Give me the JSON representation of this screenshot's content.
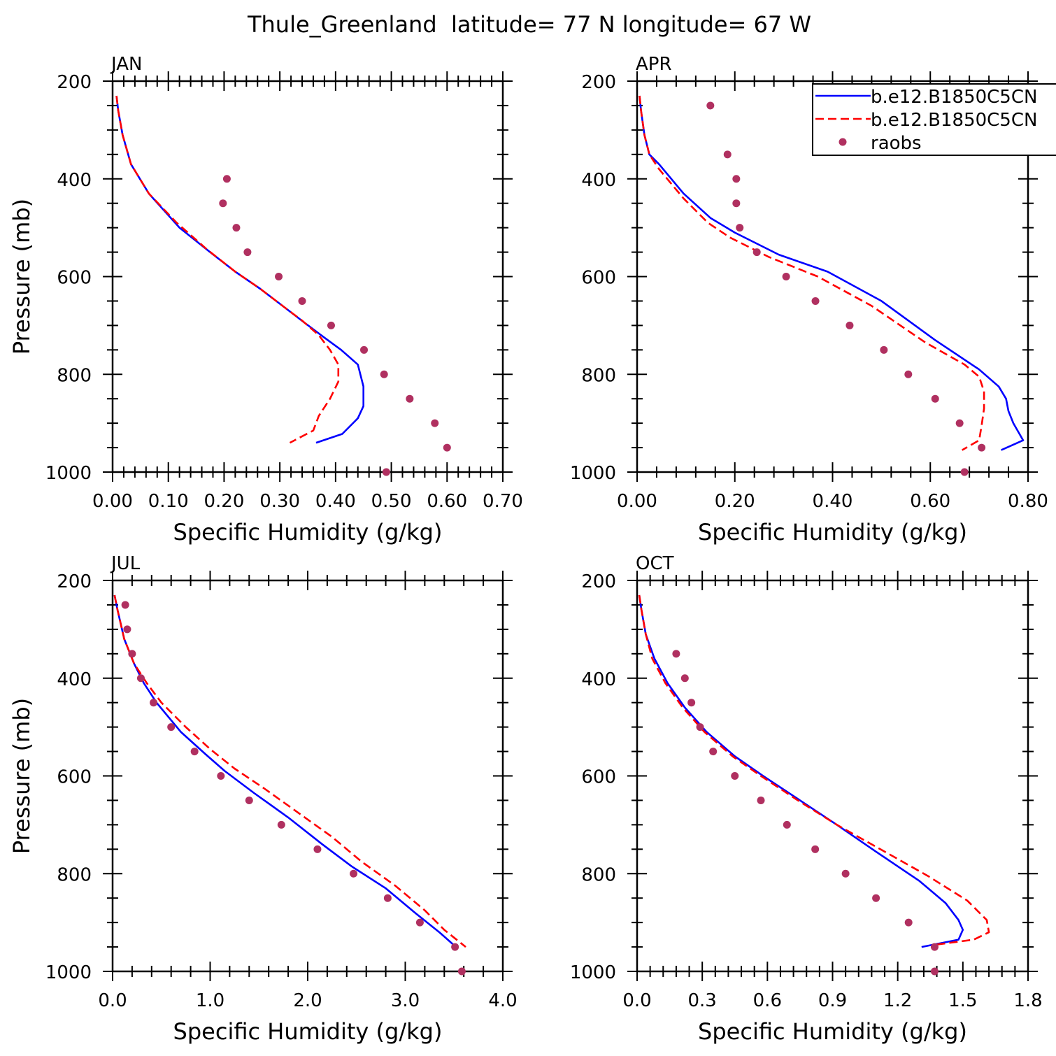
{
  "figure": {
    "title": "Thule_Greenland  latitude= 77 N longitude= 67 W"
  },
  "legend": {
    "entries": [
      {
        "label": "b.e12.B1850C5CN",
        "style": "solid",
        "color": "#0000ff"
      },
      {
        "label": "b.e12.B1850C5CN",
        "style": "dashed",
        "color": "#ff0000"
      },
      {
        "label": "raobs",
        "style": "marker",
        "color": "#b03060"
      }
    ]
  },
  "colors": {
    "model1": "#0000ff",
    "model2": "#ff0000",
    "obs": "#b03060"
  },
  "chart_data": [
    {
      "type": "line",
      "panel_label": "JAN",
      "xlabel": "Specific Humidity (g/kg)",
      "ylabel": "Pressure (mb)",
      "xlim": [
        0,
        0.7
      ],
      "ylim": [
        200,
        1000
      ],
      "y_inverted": true,
      "xticks": [
        0,
        0.1,
        0.2,
        0.3,
        0.4,
        0.5,
        0.6,
        0.7
      ],
      "xtick_labels": [
        "0.00",
        "0.10",
        "0.20",
        "0.30",
        "0.40",
        "0.50",
        "0.60",
        "0.70"
      ],
      "yticks": [
        200,
        400,
        600,
        800,
        1000
      ],
      "ytick_labels": [
        "200",
        "400",
        "600",
        "800",
        "1000"
      ],
      "series": [
        {
          "name": "b.e12.B1850C5CN",
          "style": "solid",
          "x": [
            0.007,
            0.01,
            0.018,
            0.033,
            0.065,
            0.12,
            0.175,
            0.22,
            0.265,
            0.305,
            0.345,
            0.38,
            0.41,
            0.44,
            0.45,
            0.45,
            0.44,
            0.412,
            0.365
          ],
          "y": [
            230,
            260,
            310,
            370,
            430,
            500,
            550,
            590,
            625,
            660,
            695,
            725,
            750,
            780,
            825,
            865,
            890,
            922,
            940
          ]
        },
        {
          "name": "b.e12.B1850C5CN",
          "style": "dashed",
          "x": [
            0.007,
            0.01,
            0.018,
            0.033,
            0.065,
            0.115,
            0.17,
            0.22,
            0.265,
            0.305,
            0.34,
            0.37,
            0.39,
            0.405,
            0.405,
            0.39,
            0.37,
            0.36,
            0.318
          ],
          "y": [
            230,
            260,
            310,
            370,
            430,
            490,
            545,
            590,
            625,
            660,
            690,
            720,
            750,
            780,
            815,
            850,
            885,
            915,
            940
          ]
        }
      ],
      "observations": {
        "name": "raobs",
        "x": [
          0.205,
          0.198,
          0.222,
          0.242,
          0.298,
          0.34,
          0.392,
          0.451,
          0.487,
          0.533,
          0.578,
          0.6,
          0.491
        ],
        "y": [
          400,
          450,
          500,
          550,
          600,
          650,
          700,
          750,
          800,
          850,
          900,
          950,
          1000
        ]
      }
    },
    {
      "type": "line",
      "panel_label": "APR",
      "xlabel": "Specific Humidity (g/kg)",
      "ylabel": "",
      "xlim": [
        0,
        0.8
      ],
      "ylim": [
        200,
        1000
      ],
      "y_inverted": true,
      "xticks": [
        0,
        0.2,
        0.4,
        0.6,
        0.8
      ],
      "xtick_labels": [
        "0.00",
        "0.20",
        "0.40",
        "0.60",
        "0.80"
      ],
      "yticks": [
        200,
        400,
        600,
        800,
        1000
      ],
      "ytick_labels": [
        "200",
        "400",
        "600",
        "800",
        "1000"
      ],
      "series": [
        {
          "name": "b.e12.B1850C5CN",
          "style": "solid",
          "x": [
            0.005,
            0.008,
            0.015,
            0.025,
            0.045,
            0.095,
            0.15,
            0.2,
            0.29,
            0.39,
            0.5,
            0.61,
            0.7,
            0.74,
            0.755,
            0.76,
            0.77,
            0.79,
            0.745
          ],
          "y": [
            230,
            260,
            310,
            350,
            370,
            430,
            480,
            510,
            555,
            590,
            650,
            730,
            790,
            825,
            850,
            875,
            900,
            935,
            955
          ]
        },
        {
          "name": "b.e12.B1850C5CN",
          "style": "dashed",
          "x": [
            0.005,
            0.008,
            0.015,
            0.025,
            0.045,
            0.095,
            0.145,
            0.19,
            0.27,
            0.37,
            0.48,
            0.59,
            0.67,
            0.7,
            0.71,
            0.71,
            0.705,
            0.7,
            0.665
          ],
          "y": [
            230,
            260,
            310,
            350,
            380,
            440,
            490,
            520,
            560,
            600,
            660,
            735,
            780,
            805,
            835,
            870,
            905,
            935,
            955
          ]
        }
      ],
      "observations": {
        "name": "raobs",
        "x": [
          0.15,
          0.185,
          0.203,
          0.203,
          0.21,
          0.245,
          0.305,
          0.365,
          0.435,
          0.505,
          0.555,
          0.61,
          0.66,
          0.705,
          0.67
        ],
        "y": [
          250,
          350,
          400,
          450,
          500,
          550,
          600,
          650,
          700,
          750,
          800,
          850,
          900,
          950,
          1000
        ]
      }
    },
    {
      "type": "line",
      "panel_label": "JUL",
      "xlabel": "Specific Humidity (g/kg)",
      "ylabel": "Pressure (mb)",
      "xlim": [
        0,
        4.0
      ],
      "ylim": [
        200,
        1000
      ],
      "y_inverted": true,
      "xticks": [
        0,
        1,
        2,
        3,
        4
      ],
      "xtick_labels": [
        "0.0",
        "1.0",
        "2.0",
        "3.0",
        "4.0"
      ],
      "yticks": [
        200,
        400,
        600,
        800,
        1000
      ],
      "ytick_labels": [
        "200",
        "400",
        "600",
        "800",
        "1000"
      ],
      "series": [
        {
          "name": "b.e12.B1850C5CN",
          "style": "solid",
          "x": [
            0.02,
            0.05,
            0.12,
            0.22,
            0.32,
            0.45,
            0.7,
            0.95,
            1.15,
            1.45,
            1.8,
            2.15,
            2.45,
            2.8,
            3.1,
            3.35,
            3.52
          ],
          "y": [
            230,
            260,
            320,
            370,
            410,
            450,
            510,
            555,
            590,
            635,
            685,
            740,
            785,
            830,
            880,
            920,
            950
          ]
        },
        {
          "name": "b.e12.B1850C5CN",
          "style": "dashed",
          "x": [
            0.02,
            0.05,
            0.12,
            0.22,
            0.35,
            0.5,
            0.75,
            1.0,
            1.25,
            1.55,
            1.9,
            2.25,
            2.55,
            2.9,
            3.2,
            3.4,
            3.62
          ],
          "y": [
            230,
            260,
            320,
            370,
            410,
            450,
            500,
            545,
            585,
            625,
            675,
            725,
            775,
            825,
            875,
            915,
            950
          ]
        }
      ],
      "observations": {
        "name": "raobs",
        "x": [
          0.13,
          0.15,
          0.2,
          0.29,
          0.42,
          0.6,
          0.84,
          1.11,
          1.4,
          1.73,
          2.1,
          2.47,
          2.82,
          3.15,
          3.51,
          3.58
        ],
        "y": [
          250,
          300,
          350,
          400,
          450,
          500,
          550,
          600,
          650,
          700,
          750,
          800,
          850,
          900,
          950,
          1000
        ]
      }
    },
    {
      "type": "line",
      "panel_label": "OCT",
      "xlabel": "Specific Humidity (g/kg)",
      "ylabel": "",
      "xlim": [
        0,
        1.8
      ],
      "ylim": [
        200,
        1000
      ],
      "y_inverted": true,
      "xticks": [
        0,
        0.3,
        0.6,
        0.9,
        1.2,
        1.5,
        1.8
      ],
      "xtick_labels": [
        "0.0",
        "0.3",
        "0.6",
        "0.9",
        "1.2",
        "1.5",
        "1.8"
      ],
      "yticks": [
        200,
        400,
        600,
        800,
        1000
      ],
      "ytick_labels": [
        "200",
        "400",
        "600",
        "800",
        "1000"
      ],
      "series": [
        {
          "name": "b.e12.B1850C5CN",
          "style": "solid",
          "x": [
            0.01,
            0.02,
            0.04,
            0.08,
            0.14,
            0.22,
            0.32,
            0.45,
            0.58,
            0.75,
            0.92,
            1.1,
            1.3,
            1.42,
            1.48,
            1.5,
            1.48,
            1.31
          ],
          "y": [
            230,
            260,
            310,
            360,
            410,
            460,
            510,
            560,
            600,
            650,
            700,
            755,
            815,
            860,
            895,
            915,
            935,
            950
          ]
        },
        {
          "name": "b.e12.B1850C5CN",
          "style": "dashed",
          "x": [
            0.01,
            0.02,
            0.04,
            0.07,
            0.13,
            0.21,
            0.31,
            0.44,
            0.57,
            0.74,
            0.92,
            1.12,
            1.34,
            1.52,
            1.61,
            1.62,
            1.55,
            1.38
          ],
          "y": [
            230,
            260,
            310,
            360,
            410,
            460,
            510,
            560,
            600,
            650,
            700,
            750,
            805,
            855,
            895,
            920,
            935,
            945
          ]
        }
      ],
      "observations": {
        "name": "raobs",
        "x": [
          0.18,
          0.22,
          0.25,
          0.29,
          0.35,
          0.45,
          0.57,
          0.69,
          0.82,
          0.96,
          1.1,
          1.25,
          1.37,
          1.37
        ],
        "y": [
          350,
          400,
          450,
          500,
          550,
          600,
          650,
          700,
          750,
          800,
          850,
          900,
          950,
          1000
        ]
      }
    }
  ]
}
